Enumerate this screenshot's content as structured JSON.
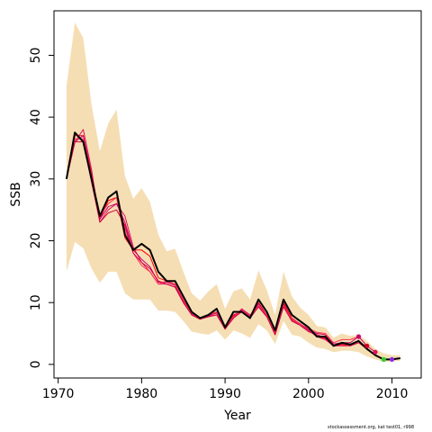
{
  "chart_data": {
    "type": "line",
    "title": "",
    "xlabel": "Year",
    "ylabel": "SSB",
    "xlim": [
      1969.5,
      2013.5
    ],
    "ylim": [
      -2.2,
      57.2
    ],
    "x_ticks": [
      1970,
      1980,
      1990,
      2000,
      2010
    ],
    "y_ticks": [
      0,
      10,
      20,
      30,
      40,
      50
    ],
    "grid": false,
    "legend": "none",
    "colors": {
      "band": "#f5deb3",
      "main_line": "#000000",
      "retro_lines": [
        "#ff0000",
        "#e0105a",
        "#c8006e",
        "#ff3050",
        "#d00040"
      ],
      "retro_endpoints": [
        "#c8006e",
        "#d00020",
        "#e0105a",
        "#32cd32",
        "#8a2be2"
      ]
    },
    "x": [
      1971,
      1972,
      1973,
      1974,
      1975,
      1976,
      1977,
      1978,
      1979,
      1980,
      1981,
      1982,
      1983,
      1984,
      1985,
      1986,
      1987,
      1988,
      1989,
      1990,
      1991,
      1992,
      1993,
      1994,
      1995,
      1996,
      1997,
      1998,
      1999,
      2000,
      2001,
      2002,
      2003,
      2004,
      2005,
      2006,
      2007,
      2008,
      2009,
      2010,
      2011
    ],
    "band_upper": [
      45.0,
      55.3,
      52.8,
      42.0,
      34.5,
      39.0,
      41.2,
      30.5,
      26.8,
      28.5,
      26.3,
      21.0,
      18.3,
      18.7,
      15.0,
      11.5,
      10.3,
      11.8,
      13.0,
      9.0,
      11.8,
      12.3,
      10.5,
      15.2,
      12.0,
      8.0,
      15.0,
      11.0,
      9.2,
      8.0,
      6.2,
      6.0,
      4.3,
      5.0,
      4.6,
      4.8,
      3.8,
      2.5,
      1.8,
      1.5,
      1.5
    ],
    "band_lower": [
      15.0,
      19.8,
      18.8,
      15.5,
      13.2,
      15.0,
      15.0,
      11.5,
      10.5,
      10.5,
      10.5,
      8.7,
      8.7,
      8.5,
      7.0,
      5.3,
      5.0,
      4.8,
      5.5,
      4.0,
      5.5,
      5.0,
      4.3,
      6.5,
      5.5,
      3.3,
      7.0,
      4.8,
      4.5,
      3.5,
      2.7,
      2.5,
      2.0,
      2.2,
      2.2,
      2.0,
      1.3,
      0.8,
      0.4,
      0.5,
      0.6
    ],
    "series": [
      {
        "values": [
          30.0,
          37.5,
          36.0,
          30.0,
          24.0,
          27.0,
          28.0,
          21.0,
          18.5,
          19.5,
          18.5,
          15.0,
          13.5,
          13.5,
          11.0,
          8.5,
          7.5,
          8.0,
          9.0,
          6.0,
          8.5,
          8.5,
          7.5,
          10.5,
          8.5,
          5.5,
          10.5,
          8.0,
          7.0,
          6.0,
          4.5,
          4.5,
          3.0,
          3.5,
          3.2,
          3.8,
          2.5,
          1.5,
          0.8,
          0.8,
          1.0
        ]
      },
      {
        "values": [
          30.0,
          37.0,
          37.0,
          31.0,
          23.5,
          26.5,
          27.0,
          20.5,
          18.5,
          18.5,
          17.5,
          14.0,
          13.5,
          13.0,
          10.5,
          8.5,
          7.5,
          8.0,
          8.5,
          6.0,
          8.0,
          8.5,
          7.5,
          10.0,
          8.0,
          5.0,
          10.0,
          7.5,
          6.5,
          5.5,
          4.5,
          4.2,
          3.0,
          3.2,
          3.0,
          3.5,
          2.5,
          1.5,
          0.8,
          0.8,
          null
        ]
      },
      {
        "values": [
          30.0,
          36.0,
          38.0,
          31.5,
          23.0,
          25.0,
          26.0,
          24.0,
          19.0,
          16.5,
          15.0,
          13.0,
          13.0,
          12.5,
          10.0,
          8.0,
          7.3,
          7.8,
          8.0,
          5.8,
          7.5,
          9.0,
          8.0,
          9.5,
          7.8,
          4.8,
          9.5,
          7.0,
          6.5,
          5.5,
          4.5,
          4.0,
          3.0,
          3.0,
          3.0,
          3.5,
          3.0,
          2.0,
          null,
          null,
          null
        ]
      },
      {
        "values": [
          30.0,
          36.0,
          37.0,
          30.5,
          23.5,
          25.5,
          26.0,
          23.0,
          18.5,
          17.0,
          15.8,
          13.3,
          13.3,
          12.8,
          10.3,
          8.2,
          7.4,
          7.9,
          8.3,
          5.9,
          7.8,
          8.8,
          7.8,
          9.8,
          8.0,
          5.0,
          9.8,
          7.2,
          6.6,
          5.6,
          5.0,
          4.8,
          3.3,
          3.5,
          3.5,
          4.5,
          3.0,
          null,
          null,
          null,
          null
        ]
      },
      {
        "values": [
          30.0,
          36.5,
          36.5,
          30.0,
          24.0,
          26.0,
          27.0,
          22.0,
          18.0,
          16.0,
          15.0,
          13.0,
          13.5,
          13.0,
          10.5,
          8.0,
          7.5,
          8.0,
          8.5,
          6.0,
          7.7,
          8.7,
          7.7,
          9.5,
          8.0,
          5.0,
          9.5,
          7.3,
          6.5,
          5.8,
          5.2,
          5.0,
          3.5,
          4.0,
          4.0,
          4.5,
          null,
          null,
          null,
          null,
          null
        ]
      },
      {
        "values": [
          30.0,
          36.0,
          36.0,
          29.5,
          23.0,
          24.5,
          25.0,
          22.5,
          18.0,
          16.5,
          15.5,
          13.5,
          13.0,
          12.5,
          10.0,
          8.0,
          7.3,
          7.7,
          8.0,
          5.7,
          7.5,
          8.5,
          7.5,
          9.3,
          7.7,
          4.8,
          9.3,
          7.0,
          6.3,
          5.3,
          4.8,
          4.3,
          3.0,
          3.3,
          3.3,
          null,
          null,
          null,
          null,
          null,
          null
        ]
      }
    ],
    "retro_endpoints": [
      {
        "x": 2006,
        "y": 4.5
      },
      {
        "x": 2007,
        "y": 3.0
      },
      {
        "x": 2008,
        "y": 2.0
      },
      {
        "x": 2009,
        "y": 0.8
      },
      {
        "x": 2010,
        "y": 0.8
      }
    ]
  },
  "footer_text": "stockassessment.org, kat  test01, r998"
}
